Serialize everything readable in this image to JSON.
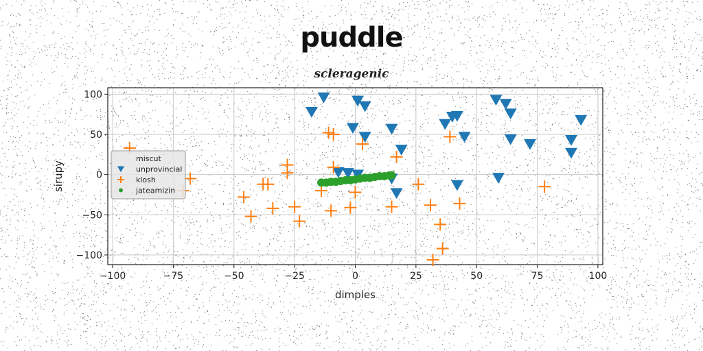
{
  "title": "puddle",
  "chart_data": {
    "type": "scatter",
    "title": "puddle",
    "subtitle": "scleragenic",
    "xlabel": "dimples",
    "ylabel": "sirupy",
    "xlim": [
      -102,
      102
    ],
    "ylim": [
      -112,
      108
    ],
    "xticks": [
      -100,
      -75,
      -50,
      -25,
      0,
      25,
      50,
      75,
      100
    ],
    "yticks": [
      -100,
      -50,
      0,
      50,
      100
    ],
    "grid": true,
    "legend_position": "center-left",
    "series": [
      {
        "name": "miscut",
        "marker": "none",
        "color": "#bbbbbb",
        "points": []
      },
      {
        "name": "unprovincial",
        "marker": "triangle-down",
        "color": "#1f77b4",
        "points": [
          [
            -18,
            78
          ],
          [
            -13,
            96
          ],
          [
            1,
            92
          ],
          [
            4,
            85
          ],
          [
            -1,
            58
          ],
          [
            4,
            47
          ],
          [
            15,
            57
          ],
          [
            19,
            31
          ],
          [
            -7,
            3
          ],
          [
            -3,
            2
          ],
          [
            1,
            0
          ],
          [
            15,
            -5
          ],
          [
            17,
            -23
          ],
          [
            37,
            63
          ],
          [
            40,
            72
          ],
          [
            42,
            73
          ],
          [
            45,
            47
          ],
          [
            42,
            -13
          ],
          [
            58,
            93
          ],
          [
            62,
            88
          ],
          [
            64,
            76
          ],
          [
            64,
            44
          ],
          [
            72,
            38
          ],
          [
            59,
            -4
          ],
          [
            89,
            43
          ],
          [
            89,
            27
          ],
          [
            93,
            68
          ]
        ]
      },
      {
        "name": "klosh",
        "marker": "plus",
        "color": "#ff7f0e",
        "points": [
          [
            -93,
            33
          ],
          [
            -71,
            -20
          ],
          [
            -68,
            -5
          ],
          [
            -28,
            12
          ],
          [
            -28,
            2
          ],
          [
            -38,
            -12
          ],
          [
            -36,
            -12
          ],
          [
            -46,
            -28
          ],
          [
            -43,
            -52
          ],
          [
            -34,
            -42
          ],
          [
            -25,
            -40
          ],
          [
            -23,
            -58
          ],
          [
            -14,
            -20
          ],
          [
            -11,
            52
          ],
          [
            -9,
            50
          ],
          [
            -9,
            9
          ],
          [
            -10,
            -45
          ],
          [
            -2,
            -41
          ],
          [
            0,
            -22
          ],
          [
            3,
            38
          ],
          [
            17,
            22
          ],
          [
            15,
            -40
          ],
          [
            26,
            -12
          ],
          [
            31,
            -38
          ],
          [
            35,
            -62
          ],
          [
            36,
            -92
          ],
          [
            32,
            -106
          ],
          [
            39,
            47
          ],
          [
            43,
            -36
          ],
          [
            78,
            -15
          ]
        ]
      },
      {
        "name": "jateamizin",
        "marker": "dot",
        "color": "#2ca02c",
        "points": [
          [
            -14,
            -10
          ],
          [
            -12,
            -10
          ],
          [
            -10,
            -9
          ],
          [
            -8,
            -9
          ],
          [
            -6,
            -8
          ],
          [
            -4,
            -7
          ],
          [
            -2,
            -7
          ],
          [
            0,
            -6
          ],
          [
            2,
            -5
          ],
          [
            4,
            -4
          ],
          [
            6,
            -4
          ],
          [
            8,
            -3
          ],
          [
            10,
            -2
          ],
          [
            12,
            -2
          ],
          [
            14,
            -1
          ],
          [
            15,
            -1
          ]
        ]
      }
    ]
  }
}
